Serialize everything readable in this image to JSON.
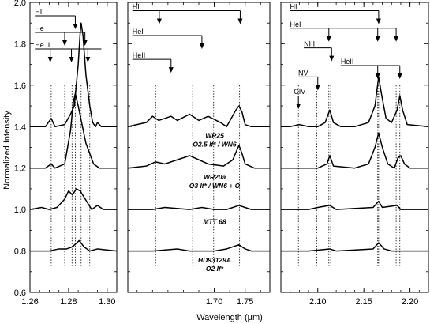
{
  "chart_data": {
    "type": "line",
    "ylabel": "Normalized Intensity",
    "xlabel": "Wavelength (μm)",
    "ylim": [
      0.6,
      2.0
    ],
    "yticks": [
      "0.6",
      "0.8",
      "1.0",
      "1.2",
      "1.4",
      "1.6",
      "1.8",
      "2.0"
    ],
    "panels": [
      {
        "xlim": [
          1.26,
          1.305
        ],
        "xticks": [
          "1.26",
          "1.28",
          "1.30"
        ],
        "xtick_values": [
          1.26,
          1.28,
          1.3
        ],
        "minor_step": 0.005,
        "series": [
          {
            "offset": 1.4,
            "points": [
              [
                1.26,
                0.0
              ],
              [
                1.268,
                0.0
              ],
              [
                1.271,
                0.04
              ],
              [
                1.273,
                0.0
              ],
              [
                1.278,
                0.01
              ],
              [
                1.281,
                0.06
              ],
              [
                1.283,
                0.1
              ],
              [
                1.285,
                0.3
              ],
              [
                1.286,
                0.45
              ],
              [
                1.2865,
                0.5
              ],
              [
                1.2875,
                0.44
              ],
              [
                1.289,
                0.25
              ],
              [
                1.291,
                0.1
              ],
              [
                1.2925,
                0.02
              ],
              [
                1.294,
                0.0
              ],
              [
                1.295,
                0.02
              ],
              [
                1.297,
                0.0
              ],
              [
                1.305,
                0.0
              ]
            ]
          },
          {
            "offset": 1.2,
            "points": [
              [
                1.26,
                0.0
              ],
              [
                1.268,
                0.0
              ],
              [
                1.271,
                0.02
              ],
              [
                1.273,
                0.0
              ],
              [
                1.278,
                0.02
              ],
              [
                1.281,
                0.18
              ],
              [
                1.2825,
                0.32
              ],
              [
                1.2835,
                0.36
              ],
              [
                1.285,
                0.3
              ],
              [
                1.287,
                0.21
              ],
              [
                1.289,
                0.12
              ],
              [
                1.291,
                0.07
              ],
              [
                1.293,
                0.02
              ],
              [
                1.296,
                0.0
              ],
              [
                1.305,
                0.0
              ]
            ]
          },
          {
            "offset": 1.0,
            "points": [
              [
                1.26,
                0.0
              ],
              [
                1.266,
                0.01
              ],
              [
                1.27,
                0.0
              ],
              [
                1.274,
                0.01
              ],
              [
                1.278,
                0.05
              ],
              [
                1.28,
                0.09
              ],
              [
                1.282,
                0.07
              ],
              [
                1.284,
                0.1
              ],
              [
                1.286,
                0.09
              ],
              [
                1.288,
                0.06
              ],
              [
                1.29,
                0.03
              ],
              [
                1.292,
                0.0
              ],
              [
                1.295,
                0.02
              ],
              [
                1.298,
                0.0
              ],
              [
                1.305,
                0.0
              ]
            ]
          },
          {
            "offset": 0.8,
            "points": [
              [
                1.26,
                0.0
              ],
              [
                1.27,
                0.0
              ],
              [
                1.275,
                0.01
              ],
              [
                1.279,
                0.01
              ],
              [
                1.282,
                0.02
              ],
              [
                1.2855,
                0.05
              ],
              [
                1.288,
                0.02
              ],
              [
                1.291,
                0.0
              ],
              [
                1.295,
                0.01
              ],
              [
                1.305,
                0.0
              ]
            ]
          }
        ],
        "dotted_lines": [
          1.271,
          1.278,
          1.2818,
          1.2835,
          1.2865,
          1.29,
          1.291
        ],
        "line_groups": [
          {
            "label": "HI",
            "y": 1.935,
            "from": 1.265,
            "to": 1.2835,
            "arrows": [
              1.2835
            ]
          },
          {
            "label": "He I",
            "y": 1.855,
            "from": 1.265,
            "to": 1.2885,
            "arrows": [
              1.278,
              1.2885
            ]
          },
          {
            "label": "He II",
            "y": 1.775,
            "from": 1.265,
            "to": 1.297,
            "arrows": [
              1.2705,
              1.2815,
              1.29
            ]
          }
        ]
      },
      {
        "xlim": [
          1.56,
          1.79
        ],
        "xticks": [
          "1.70",
          "1.75"
        ],
        "xtick_values": [
          1.7,
          1.75
        ],
        "minor_step": 0.025,
        "series": [
          {
            "offset": 1.4,
            "points": [
              [
                1.56,
                0.0
              ],
              [
                1.59,
                0.02
              ],
              [
                1.6,
                0.05
              ],
              [
                1.61,
                0.03
              ],
              [
                1.63,
                0.05
              ],
              [
                1.64,
                0.03
              ],
              [
                1.66,
                0.06
              ],
              [
                1.675,
                0.03
              ],
              [
                1.69,
                0.05
              ],
              [
                1.71,
                0.02
              ],
              [
                1.72,
                0.0
              ],
              [
                1.735,
                0.08
              ],
              [
                1.74,
                0.1
              ],
              [
                1.745,
                0.07
              ],
              [
                1.75,
                0.01
              ],
              [
                1.76,
                0.0
              ],
              [
                1.79,
                0.0
              ]
            ]
          },
          {
            "offset": 1.2,
            "points": [
              [
                1.56,
                0.0
              ],
              [
                1.59,
                0.01
              ],
              [
                1.605,
                0.03
              ],
              [
                1.62,
                0.02
              ],
              [
                1.64,
                0.04
              ],
              [
                1.66,
                0.06
              ],
              [
                1.675,
                0.04
              ],
              [
                1.69,
                0.02
              ],
              [
                1.715,
                0.01
              ],
              [
                1.73,
                0.04
              ],
              [
                1.74,
                0.11
              ],
              [
                1.745,
                0.07
              ],
              [
                1.75,
                0.02
              ],
              [
                1.765,
                0.0
              ],
              [
                1.79,
                0.0
              ]
            ]
          },
          {
            "offset": 1.0,
            "points": [
              [
                1.56,
                0.0
              ],
              [
                1.6,
                0.0
              ],
              [
                1.62,
                0.01
              ],
              [
                1.66,
                0.0
              ],
              [
                1.68,
                0.01
              ],
              [
                1.7,
                0.0
              ],
              [
                1.72,
                0.0
              ],
              [
                1.74,
                0.02
              ],
              [
                1.76,
                0.0
              ],
              [
                1.79,
                0.0
              ]
            ]
          },
          {
            "offset": 0.8,
            "points": [
              [
                1.56,
                0.0
              ],
              [
                1.6,
                0.0
              ],
              [
                1.64,
                0.01
              ],
              [
                1.66,
                0.0
              ],
              [
                1.7,
                0.0
              ],
              [
                1.72,
                0.01
              ],
              [
                1.74,
                0.03
              ],
              [
                1.75,
                0.01
              ],
              [
                1.76,
                0.0
              ],
              [
                1.79,
                0.0
              ]
            ]
          }
        ],
        "dotted_lines": [
          1.605,
          1.665,
          1.699,
          1.741
        ],
        "line_groups": [
          {
            "label": "HI",
            "y": 1.96,
            "from": 1.575,
            "to": 1.742,
            "arrows": [
              1.611,
              1.742
            ]
          },
          {
            "label": "HeI",
            "y": 1.84,
            "from": 1.575,
            "to": 1.68,
            "arrows": [
              1.68
            ]
          },
          {
            "label": "HeII",
            "y": 1.725,
            "from": 1.575,
            "to": 1.63,
            "arrows": [
              1.63
            ]
          }
        ]
      },
      {
        "xlim": [
          2.06,
          2.22
        ],
        "xticks": [
          "2.10",
          "2.15",
          "2.20"
        ],
        "xtick_values": [
          2.1,
          2.15,
          2.2
        ],
        "minor_step": 0.01,
        "series": [
          {
            "offset": 1.4,
            "points": [
              [
                2.06,
                0.0
              ],
              [
                2.07,
                0.0
              ],
              [
                2.08,
                0.01
              ],
              [
                2.09,
                0.0
              ],
              [
                2.1,
                0.0
              ],
              [
                2.108,
                0.02
              ],
              [
                2.113,
                0.08
              ],
              [
                2.117,
                0.02
              ],
              [
                2.125,
                0.0
              ],
              [
                2.14,
                0.0
              ],
              [
                2.155,
                0.02
              ],
              [
                2.162,
                0.1
              ],
              [
                2.166,
                0.24
              ],
              [
                2.169,
                0.16
              ],
              [
                2.174,
                0.04
              ],
              [
                2.18,
                0.02
              ],
              [
                2.186,
                0.08
              ],
              [
                2.189,
                0.15
              ],
              [
                2.192,
                0.08
              ],
              [
                2.197,
                0.01
              ],
              [
                2.22,
                0.0
              ]
            ]
          },
          {
            "offset": 1.2,
            "points": [
              [
                2.06,
                0.0
              ],
              [
                2.08,
                0.0
              ],
              [
                2.1,
                0.0
              ],
              [
                2.11,
                0.02
              ],
              [
                2.113,
                0.06
              ],
              [
                2.117,
                0.01
              ],
              [
                2.14,
                0.0
              ],
              [
                2.155,
                0.02
              ],
              [
                2.162,
                0.1
              ],
              [
                2.166,
                0.17
              ],
              [
                2.17,
                0.1
              ],
              [
                2.176,
                0.02
              ],
              [
                2.183,
                0.0
              ],
              [
                2.187,
                0.05
              ],
              [
                2.19,
                0.06
              ],
              [
                2.194,
                0.02
              ],
              [
                2.2,
                0.0
              ],
              [
                2.22,
                0.0
              ]
            ]
          },
          {
            "offset": 1.0,
            "points": [
              [
                2.06,
                0.0
              ],
              [
                2.09,
                0.0
              ],
              [
                2.1,
                0.01
              ],
              [
                2.113,
                0.02
              ],
              [
                2.12,
                0.0
              ],
              [
                2.16,
                0.01
              ],
              [
                2.166,
                0.04
              ],
              [
                2.17,
                0.01
              ],
              [
                2.186,
                0.02
              ],
              [
                2.19,
                0.0
              ],
              [
                2.22,
                0.0
              ]
            ]
          },
          {
            "offset": 0.8,
            "points": [
              [
                2.06,
                0.0
              ],
              [
                2.09,
                0.0
              ],
              [
                2.113,
                0.01
              ],
              [
                2.12,
                0.0
              ],
              [
                2.16,
                0.01
              ],
              [
                2.166,
                0.04
              ],
              [
                2.172,
                0.01
              ],
              [
                2.18,
                0.0
              ],
              [
                2.22,
                0.0
              ]
            ]
          }
        ],
        "dotted_lines": [
          2.079,
          2.099,
          2.112,
          2.114,
          2.165,
          2.166,
          2.185,
          2.189
        ],
        "line_groups": [
          {
            "label": "HI",
            "y": 1.96,
            "from": 2.075,
            "to": 2.166,
            "arrows": [
              2.166
            ]
          },
          {
            "label": "HeI",
            "y": 1.875,
            "from": 2.075,
            "to": 2.185,
            "arrows": [
              2.112,
              2.165,
              2.185
            ]
          },
          {
            "label": "NIII",
            "y": 1.78,
            "from": 2.09,
            "to": 2.115,
            "arrows": [
              2.115
            ]
          },
          {
            "label": "HeII",
            "y": 1.695,
            "from": 2.13,
            "to": 2.189,
            "arrows": [
              2.165,
              2.189
            ]
          },
          {
            "label": "NV",
            "y": 1.64,
            "from": 2.084,
            "to": 2.1,
            "arrows": [
              2.1
            ]
          },
          {
            "label": "CIV",
            "y": 1.55,
            "from": 2.079,
            "to": 2.079,
            "arrows": [
              2.079
            ]
          }
        ]
      }
    ],
    "star_labels": [
      {
        "lines": [
          "WR25",
          "O2.5 If* / WN6"
        ],
        "y": 1.345
      },
      {
        "lines": [
          "WR20a",
          "O3 If* / WN6 + O"
        ],
        "y": 1.145
      },
      {
        "lines": [
          "MTT 68"
        ],
        "y": 0.93
      },
      {
        "lines": [
          "HD93129A",
          "O2 If*"
        ],
        "y": 0.745
      }
    ]
  }
}
